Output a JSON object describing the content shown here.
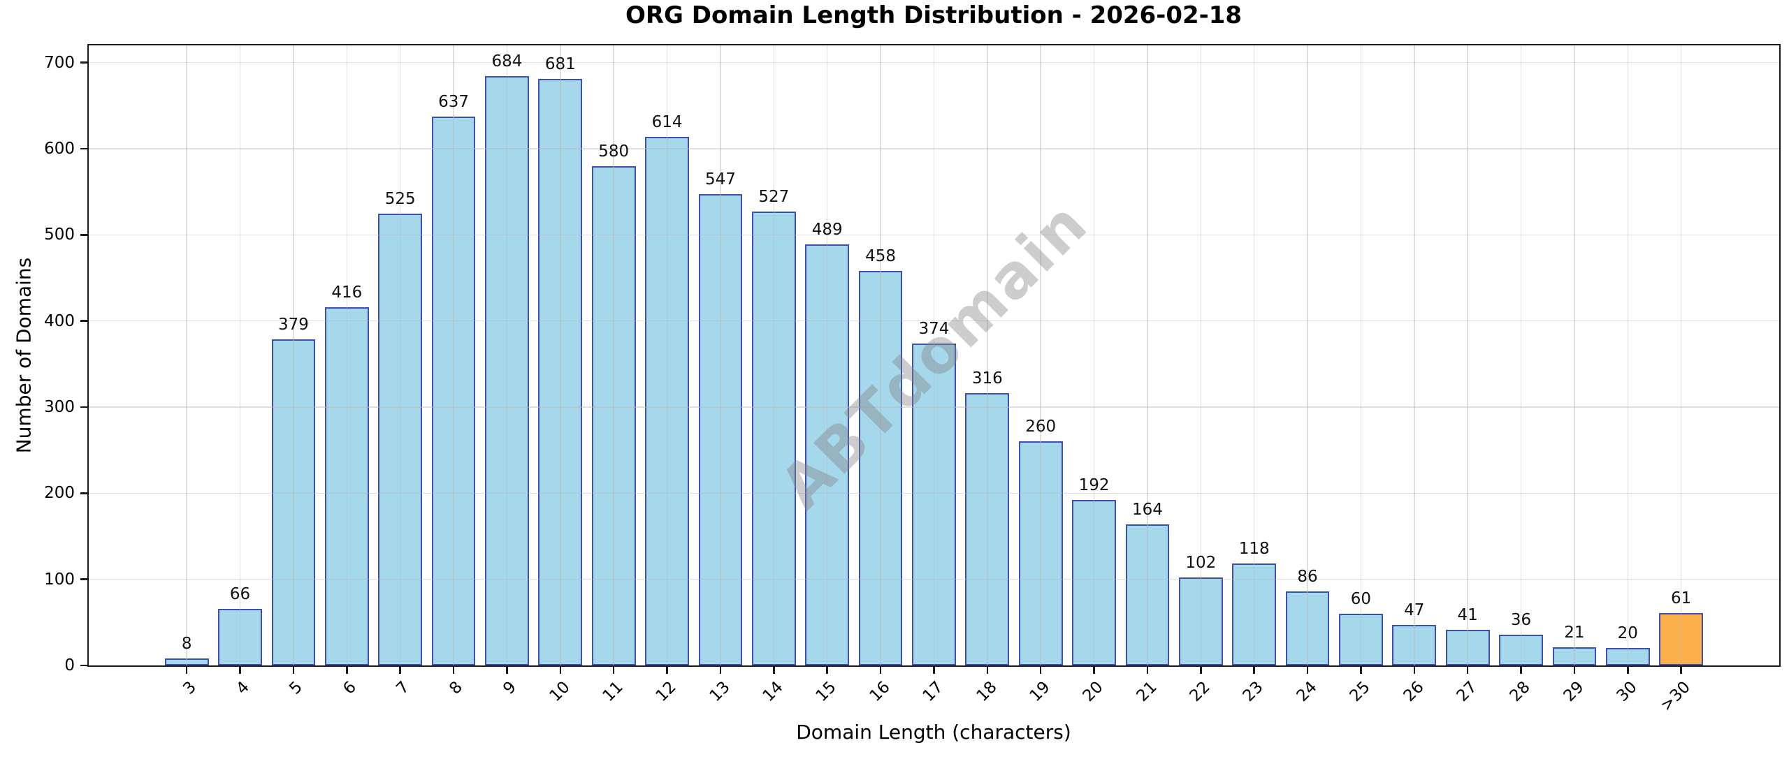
{
  "title": "ORG Domain Length Distribution - 2026-02-18",
  "watermark": "ABTdomain",
  "chart_data": {
    "type": "bar",
    "title": "ORG Domain Length Distribution - 2026-02-18",
    "xlabel": "Domain Length (characters)",
    "ylabel": "Number of Domains",
    "categories": [
      "3",
      "4",
      "5",
      "6",
      "7",
      "8",
      "9",
      "10",
      "11",
      "12",
      "13",
      "14",
      "15",
      "16",
      "17",
      "18",
      "19",
      "20",
      "21",
      "22",
      "23",
      "24",
      "25",
      "26",
      "27",
      "28",
      "29",
      "30",
      ">30"
    ],
    "values": [
      8,
      66,
      379,
      416,
      525,
      637,
      684,
      681,
      580,
      614,
      547,
      527,
      489,
      458,
      374,
      316,
      260,
      192,
      164,
      102,
      118,
      86,
      60,
      47,
      41,
      36,
      21,
      20,
      61
    ],
    "ylim": [
      0,
      720
    ],
    "yticks": [
      0,
      100,
      200,
      300,
      400,
      500,
      600,
      700
    ],
    "grid": true,
    "grid_over_bars": true,
    "xtick_rotation": 45,
    "bar_color": "#A6D8EC",
    "bar_edge_color": "#3E4FB0",
    "highlight_index": 28,
    "highlight_color": "#FBB04B",
    "value_labels": true
  }
}
